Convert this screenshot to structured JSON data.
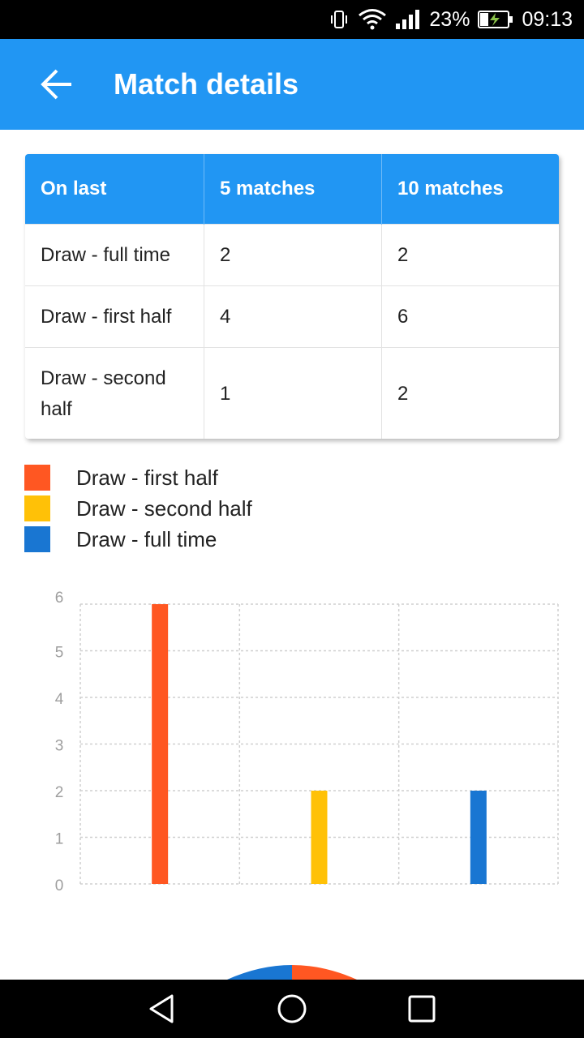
{
  "status_bar": {
    "battery": "23%",
    "time": "09:13",
    "icons": [
      "vibrate-icon",
      "wifi-icon",
      "signal-icon",
      "battery-charging-icon"
    ]
  },
  "app_bar": {
    "title": "Match details",
    "back_icon": "arrow-back-icon",
    "color": "#2196F3"
  },
  "table": {
    "headers": [
      "On last",
      "5 matches",
      "10 matches"
    ],
    "rows": [
      {
        "label": "Draw - full time",
        "v5": "2",
        "v10": "2"
      },
      {
        "label": "Draw - first half",
        "v5": "4",
        "v10": "6"
      },
      {
        "label": "Draw - second half",
        "v5": "1",
        "v10": "2"
      }
    ]
  },
  "legend": [
    {
      "label": "Draw - first half",
      "color": "#FF5722"
    },
    {
      "label": "Draw - second half",
      "color": "#FFC107"
    },
    {
      "label": "Draw - full time",
      "color": "#1976D2"
    }
  ],
  "chart_data": {
    "type": "bar",
    "categories": [
      "Draw - first half",
      "Draw - second half",
      "Draw - full time"
    ],
    "values": [
      6,
      2,
      2
    ],
    "colors": [
      "#FF5722",
      "#FFC107",
      "#1976D2"
    ],
    "yticks": [
      "0",
      "1",
      "2",
      "3",
      "4",
      "5",
      "6"
    ],
    "ylim": [
      0,
      6
    ],
    "grid": true
  },
  "pie_partial": {
    "colors": [
      "#1976D2",
      "#FF5722"
    ]
  },
  "nav_bar": {
    "icons": [
      "back-triangle-icon",
      "home-circle-icon",
      "recents-square-icon"
    ]
  }
}
